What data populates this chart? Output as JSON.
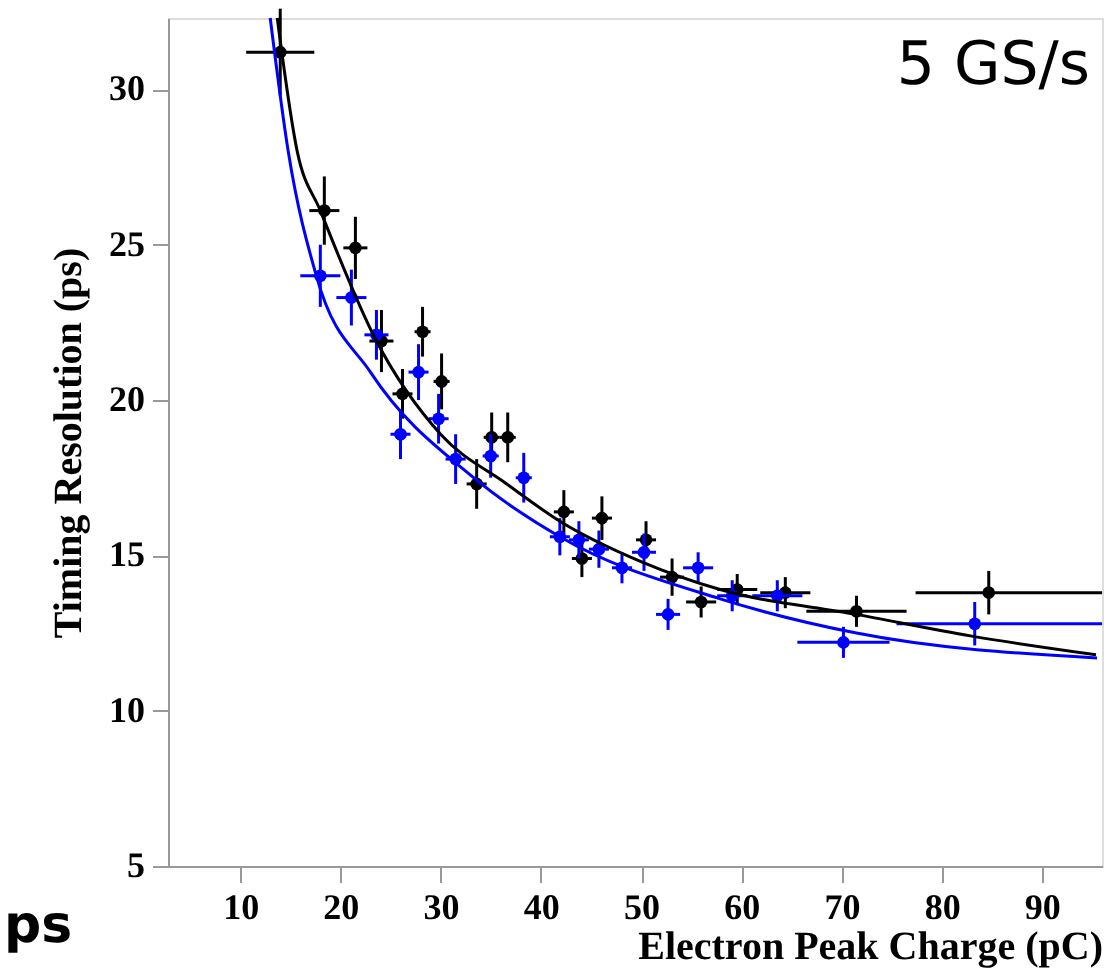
{
  "chart_data": {
    "type": "scatter",
    "xlabel": "Electron Peak Charge (pC)",
    "ylabel": "Timing Resolution (ps)",
    "annotations": [
      "5 GS/s",
      "ps"
    ],
    "xlim": [
      2.8,
      96
    ],
    "xticks": [
      10,
      20,
      30,
      40,
      50,
      60,
      70,
      80,
      90
    ],
    "ylim": [
      5,
      32.3
    ],
    "yticks": [
      5,
      10,
      15,
      20,
      25,
      30
    ],
    "grid": false,
    "marker": "circle",
    "series": [
      {
        "color": "#000000",
        "x": [
          14.0,
          18.4,
          21.5,
          24.1,
          26.2,
          28.2,
          30.1,
          33.6,
          35.1,
          36.7,
          42.3,
          44.1,
          46.1,
          50.5,
          53.1,
          56.0,
          59.6,
          64.4,
          71.5,
          84.7
        ],
        "values": [
          31.2,
          26.1,
          24.9,
          21.9,
          20.2,
          22.2,
          20.6,
          17.3,
          18.8,
          18.8,
          16.4,
          14.9,
          16.2,
          15.5,
          14.3,
          13.5,
          13.9,
          13.8,
          13.2,
          13.8
        ],
        "errors": [
          1.4,
          1.1,
          1.0,
          1.0,
          0.8,
          0.8,
          0.9,
          0.8,
          0.8,
          0.8,
          0.7,
          0.6,
          0.7,
          0.6,
          0.6,
          0.5,
          0.5,
          0.5,
          0.5,
          0.7
        ],
        "xerrors": [
          3.4,
          1.5,
          1.2,
          1.2,
          1.0,
          0.8,
          0.8,
          1.0,
          0.8,
          0.8,
          1.0,
          1.0,
          1.0,
          1.0,
          1.2,
          1.5,
          2.0,
          2.5,
          5.0,
          [
            77.4,
            96
          ]
        ]
      },
      {
        "color": "#0000ff",
        "x": [
          18.0,
          21.1,
          23.6,
          26.0,
          27.8,
          29.8,
          31.5,
          35.0,
          38.3,
          41.9,
          43.8,
          45.8,
          48.1,
          50.3,
          52.7,
          55.7,
          59.1,
          63.6,
          70.2,
          83.3
        ],
        "values": [
          24.0,
          23.3,
          22.1,
          18.9,
          20.9,
          19.4,
          18.1,
          18.2,
          17.5,
          15.6,
          15.5,
          15.2,
          14.6,
          15.1,
          13.1,
          14.6,
          13.7,
          13.7,
          12.2,
          12.8
        ],
        "errors": [
          1.0,
          0.9,
          0.8,
          0.8,
          0.9,
          0.8,
          0.8,
          0.7,
          0.8,
          0.6,
          0.6,
          0.6,
          0.5,
          0.6,
          0.5,
          0.5,
          0.5,
          0.5,
          0.5,
          0.7
        ],
        "xerrors": [
          2.0,
          1.5,
          1.2,
          1.0,
          1.0,
          1.0,
          1.0,
          0.8,
          0.8,
          1.0,
          1.0,
          1.0,
          1.0,
          1.2,
          1.2,
          1.5,
          1.5,
          2.5,
          4.6,
          [
            75.5,
            96
          ]
        ]
      },
      {
        "type": "line",
        "color": "#000000",
        "marker": "none",
        "x": [
          13.7,
          15.7,
          18.0,
          23.6,
          30.0,
          36.6,
          41.9,
          50.0,
          57.9,
          71.5,
          83.0,
          95.4
        ],
        "values": [
          32.3,
          28.0,
          26.1,
          21.9,
          18.9,
          17.3,
          16.1,
          14.8,
          13.9,
          13.1,
          12.4,
          11.8
        ]
      },
      {
        "type": "line",
        "color": "#0000ff",
        "marker": "none",
        "x": [
          13.0,
          14.8,
          17.6,
          23.0,
          33.3,
          41.9,
          57.9,
          71.5,
          95.5
        ],
        "values": [
          32.3,
          28.0,
          24.0,
          20.9,
          17.5,
          15.6,
          13.6,
          12.5,
          11.7
        ]
      }
    ]
  }
}
